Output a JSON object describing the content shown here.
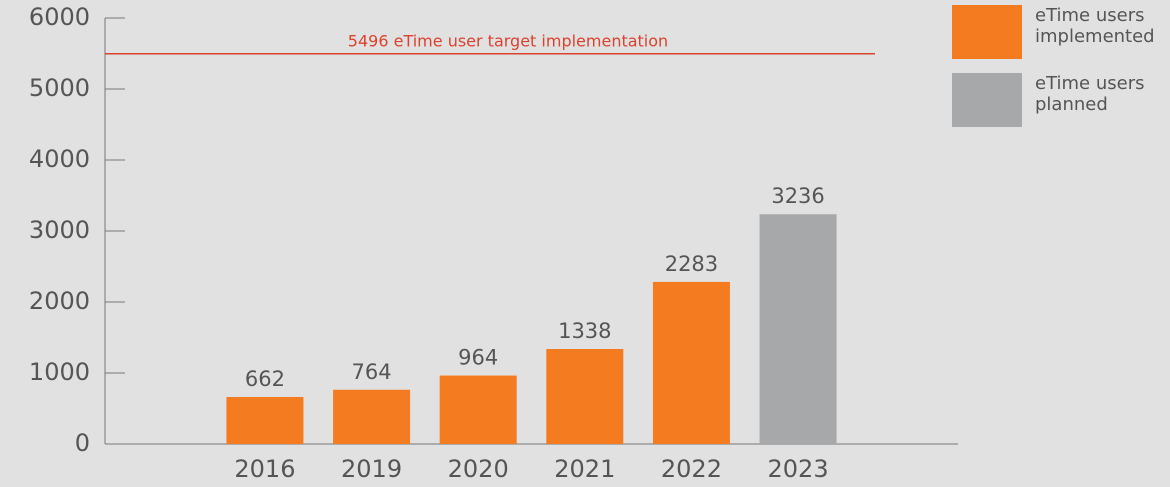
{
  "chart_data": {
    "type": "bar",
    "categories": [
      "2016",
      "2019",
      "2020",
      "2021",
      "2022",
      "2023"
    ],
    "series": [
      {
        "name": "eTime users implemented",
        "color": "#f47b20",
        "values": [
          662,
          764,
          964,
          1338,
          2283,
          null
        ]
      },
      {
        "name": "eTime users planned",
        "color": "#a7a8aa",
        "values": [
          null,
          null,
          null,
          null,
          null,
          3236
        ]
      }
    ],
    "annotation": {
      "label": "5496 eTime user target implementation",
      "value": 5496,
      "color": "#d9432f"
    },
    "ylim": [
      0,
      6000
    ],
    "yticks": [
      0,
      1000,
      2000,
      3000,
      4000,
      5000,
      6000
    ],
    "legend": "top-right"
  }
}
